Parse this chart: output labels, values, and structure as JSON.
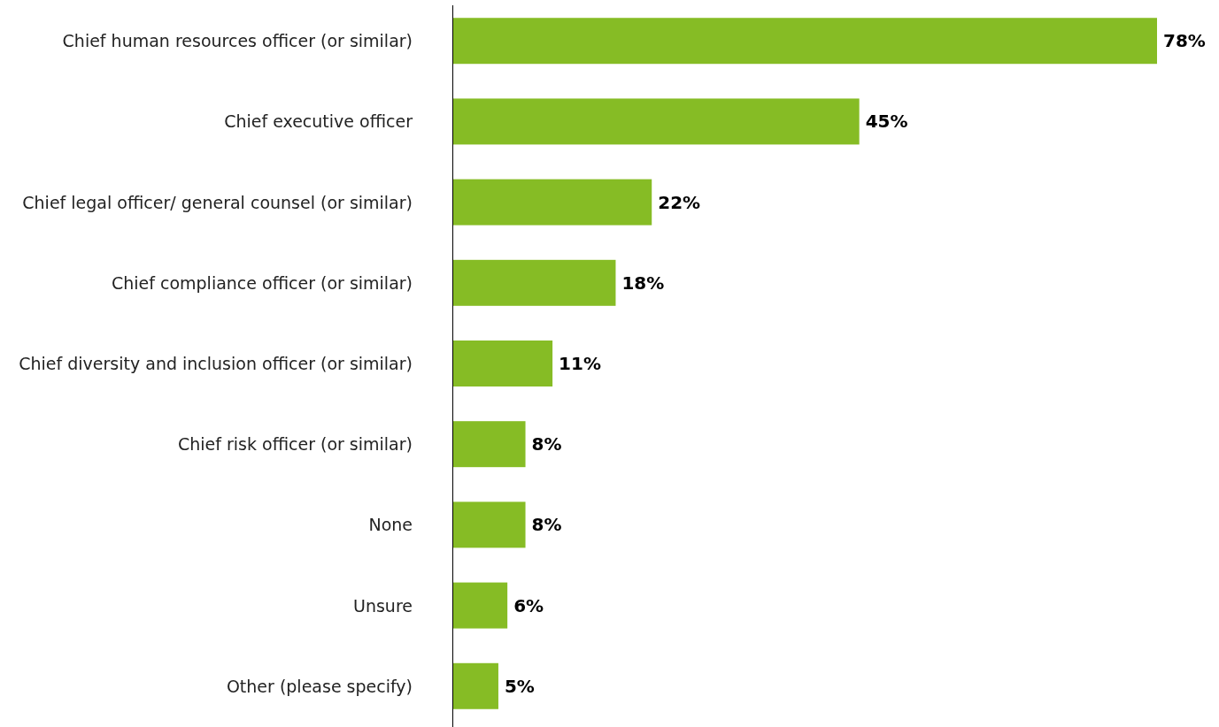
{
  "chart_data": {
    "type": "bar",
    "orientation": "horizontal",
    "categories": [
      "Chief human resources officer (or similar)",
      "Chief executive officer",
      "Chief legal officer/ general counsel (or similar)",
      "Chief compliance officer (or similar)",
      "Chief diversity and inclusion officer (or similar)",
      "Chief risk officer (or similar)",
      "None",
      "Unsure",
      "Other (please specify)"
    ],
    "values": [
      78,
      45,
      22,
      18,
      11,
      8,
      8,
      6,
      5
    ],
    "value_labels": [
      "78%",
      "45%",
      "22%",
      "18%",
      "11%",
      "8%",
      "8%",
      "6%",
      "5%"
    ],
    "color": "#86bc25",
    "tick_labels": "y"
  }
}
